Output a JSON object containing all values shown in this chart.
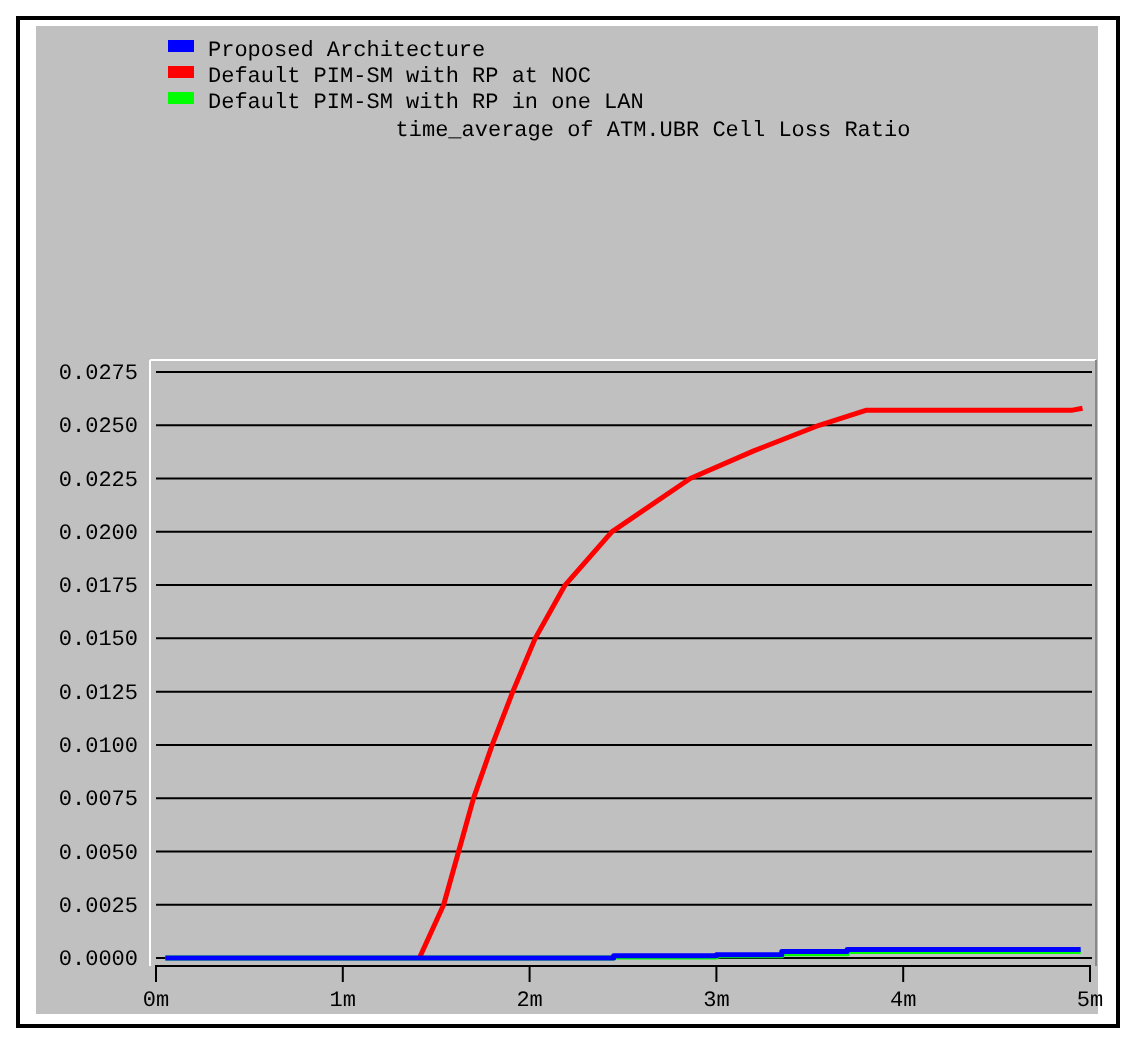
{
  "chart_data": {
    "type": "line",
    "title": "time_average of ATM.UBR Cell Loss Ratio",
    "xlim": [
      0,
      5
    ],
    "xticks": [
      {
        "value": 0,
        "label": "0m"
      },
      {
        "value": 1,
        "label": "1m"
      },
      {
        "value": 2,
        "label": "2m"
      },
      {
        "value": 3,
        "label": "3m"
      },
      {
        "value": 4,
        "label": "4m"
      },
      {
        "value": 5,
        "label": "5m"
      }
    ],
    "ylim": [
      0,
      0.0275
    ],
    "yticks": [
      {
        "value": 0,
        "label": "0.0000"
      },
      {
        "value": 0.0025,
        "label": "0.0025"
      },
      {
        "value": 0.005,
        "label": "0.0050"
      },
      {
        "value": 0.0075,
        "label": "0.0075"
      },
      {
        "value": 0.01,
        "label": "0.0100"
      },
      {
        "value": 0.0125,
        "label": "0.0125"
      },
      {
        "value": 0.015,
        "label": "0.0150"
      },
      {
        "value": 0.0175,
        "label": "0.0175"
      },
      {
        "value": 0.02,
        "label": "0.0200"
      },
      {
        "value": 0.0225,
        "label": "0.0225"
      },
      {
        "value": 0.025,
        "label": "0.0250"
      },
      {
        "value": 0.0275,
        "label": "0.0275"
      }
    ],
    "grid": "y",
    "legend": "top left",
    "series": [
      {
        "name": "Proposed Architecture",
        "color": "#0000ff",
        "x": [
          0.05,
          2.45,
          2.45,
          3.0,
          3.0,
          3.35,
          3.35,
          3.7,
          3.7,
          4.95
        ],
        "values": [
          0,
          0,
          0.0001,
          0.0001,
          0.00015,
          0.00015,
          0.0003,
          0.0003,
          0.0004,
          0.0004
        ]
      },
      {
        "name": "Default PIM-SM with RP at NOC",
        "color": "#ff0000",
        "x": [
          1.41,
          1.54,
          1.62,
          1.7,
          1.8,
          1.91,
          2.03,
          2.19,
          2.44,
          2.86,
          3.2,
          3.55,
          3.8,
          4.9,
          4.96
        ],
        "values": [
          0,
          0.0025,
          0.005,
          0.0075,
          0.01,
          0.0125,
          0.015,
          0.0175,
          0.02,
          0.0225,
          0.0238,
          0.025,
          0.0257,
          0.0257,
          0.0258
        ]
      },
      {
        "name": "Default PIM-SM with RP in one LAN",
        "color": "#00ff00",
        "x": [
          0.05,
          2.45,
          2.45,
          3.0,
          3.0,
          3.35,
          3.35,
          3.7,
          3.7,
          4.95
        ],
        "values": [
          0,
          0,
          5e-05,
          5e-05,
          0.0001,
          0.0001,
          0.0002,
          0.0002,
          0.0003,
          0.0003
        ]
      }
    ]
  }
}
